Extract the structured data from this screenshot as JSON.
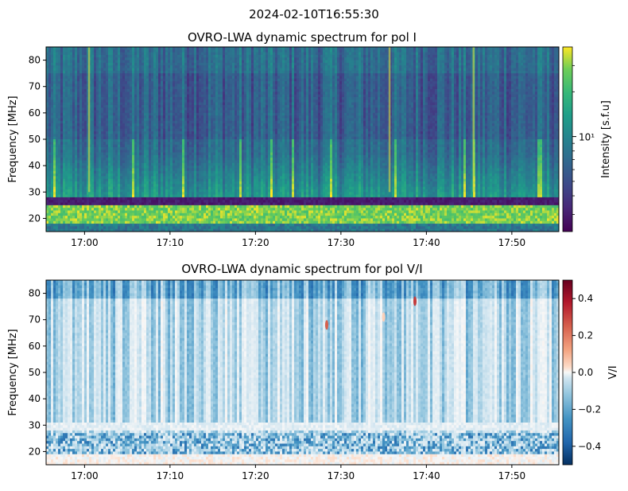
{
  "figure": {
    "suptitle": "2024-02-10T16:55:30"
  },
  "chart_data": [
    {
      "type": "heatmap",
      "title": "OVRO-LWA dynamic spectrum for pol I",
      "xlabel": "",
      "ylabel": "Frequency [MHz]",
      "x_range": [
        "16:55:30",
        "17:55:30"
      ],
      "x_ticks": [
        "17:00",
        "17:10",
        "17:20",
        "17:30",
        "17:40",
        "17:50"
      ],
      "ylim": [
        15,
        85
      ],
      "y_ticks": [
        20,
        30,
        40,
        50,
        60,
        70,
        80
      ],
      "colormap": "viridis",
      "colorbar": {
        "label": "Intensity [s.f.u]",
        "scale": "log",
        "tick_labels": [
          "10¹"
        ],
        "range": [
          2.3,
          40
        ]
      },
      "features": {
        "dark_band_mhz": [
          25,
          28
        ],
        "bright_band_mhz": [
          18,
          25
        ],
        "bright_vertical_bursts": [
          "17:00:30",
          "17:45:30",
          "17:35:40"
        ]
      }
    },
    {
      "type": "heatmap",
      "title": "OVRO-LWA dynamic spectrum for pol V/I",
      "xlabel": "",
      "ylabel": "Frequency [MHz]",
      "x_range": [
        "16:55:30",
        "17:55:30"
      ],
      "x_ticks": [
        "17:00",
        "17:10",
        "17:20",
        "17:30",
        "17:40",
        "17:50"
      ],
      "ylim": [
        15,
        85
      ],
      "y_ticks": [
        20,
        30,
        40,
        50,
        60,
        70,
        80
      ],
      "colormap": "RdBu_r",
      "colorbar": {
        "label": "V/I",
        "scale": "linear",
        "range": [
          -0.5,
          0.5
        ],
        "ticks": [
          0.4,
          0.2,
          0.0,
          -0.2,
          -0.4
        ],
        "tick_labels": [
          "0.4",
          "0.2",
          "0.0",
          "−0.2",
          "−0.4"
        ]
      },
      "features": {
        "positive_spots": [
          {
            "time": "17:38:40",
            "freq_mhz": 77,
            "value": 0.35
          },
          {
            "time": "17:28:20",
            "freq_mhz": 68,
            "value": 0.3
          },
          {
            "time": "17:35:00",
            "freq_mhz": 71,
            "value": 0.12
          }
        ]
      }
    }
  ]
}
